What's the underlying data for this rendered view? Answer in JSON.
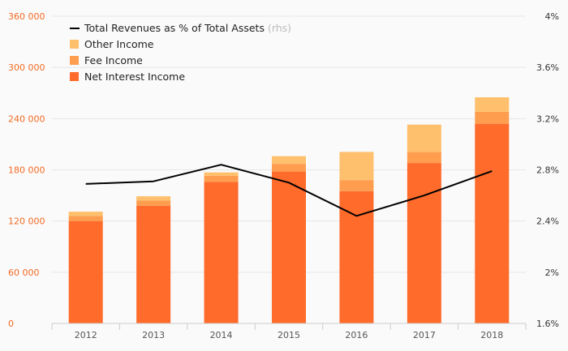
{
  "chart_data": {
    "type": "bar",
    "stacked": true,
    "title": "",
    "xlabel": "",
    "ylabel": "",
    "categories": [
      "2012",
      "2013",
      "2014",
      "2015",
      "2016",
      "2017",
      "2018"
    ],
    "series": [
      {
        "name": "Net Interest Income",
        "color": "#ff6b2b",
        "values": [
          120000,
          138000,
          166000,
          178000,
          155000,
          188000,
          234000
        ]
      },
      {
        "name": "Fee Income",
        "color": "#ff9d4f",
        "values": [
          6000,
          6000,
          7000,
          9000,
          13000,
          13000,
          14000
        ]
      },
      {
        "name": "Other Income",
        "color": "#ffc06e",
        "values": [
          5000,
          5000,
          4000,
          9000,
          33000,
          32000,
          17000
        ]
      }
    ],
    "line_series": {
      "name": "Total Revenues as % of Total Assets",
      "name_suffix": "(rhs)",
      "color": "#000000",
      "axis": "right",
      "values": [
        2.69,
        2.71,
        2.84,
        2.7,
        2.44,
        2.6,
        2.79
      ]
    },
    "left_axis": {
      "min": 0,
      "max": 360000,
      "ticks": [
        "0",
        "60 000",
        "120 000",
        "180 000",
        "240 000",
        "300 000",
        "360 000"
      ]
    },
    "right_axis": {
      "min": 1.6,
      "max": 4.0,
      "ticks": [
        "1.6%",
        "2%",
        "2.4%",
        "2.8%",
        "3.2%",
        "3.6%",
        "4%"
      ]
    },
    "grid": true,
    "legend_position": "top-left"
  }
}
